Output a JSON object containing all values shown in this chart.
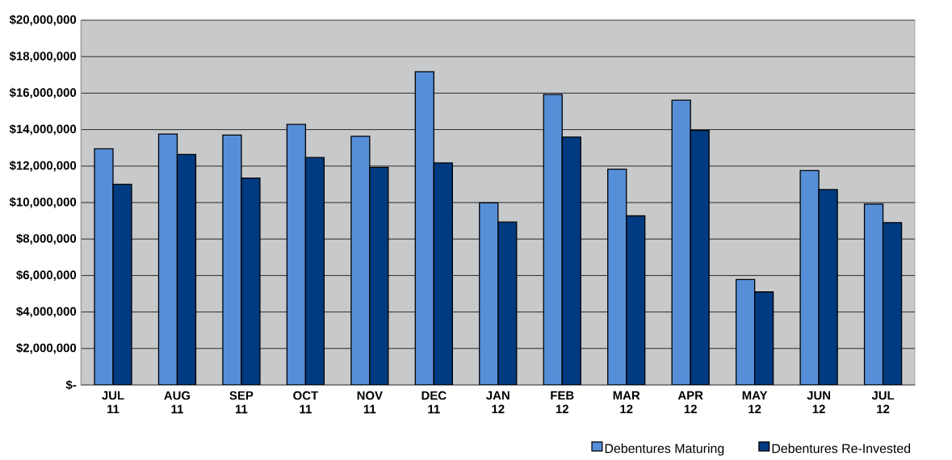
{
  "chart_data": {
    "type": "bar",
    "categories": [
      "JUL 11",
      "AUG 11",
      "SEP 11",
      "OCT 11",
      "NOV 11",
      "DEC 11",
      "JAN 12",
      "FEB 12",
      "MAR 12",
      "APR 12",
      "MAY 12",
      "JUN 12",
      "JUL 12"
    ],
    "series": [
      {
        "name": "Debentures Maturing",
        "color": "#568fd8",
        "values": [
          12950000,
          13760000,
          13700000,
          14290000,
          13630000,
          17170000,
          9980000,
          15920000,
          11830000,
          15610000,
          5780000,
          11750000,
          9920000
        ]
      },
      {
        "name": "Debentures Re-Invested",
        "color": "#003a80",
        "values": [
          11000000,
          12640000,
          11340000,
          12470000,
          11930000,
          12170000,
          8930000,
          13590000,
          9270000,
          13950000,
          5100000,
          10710000,
          8900000
        ]
      }
    ],
    "ylim": [
      0,
      20000000
    ],
    "yticks": [
      {
        "value": 0,
        "label": "$-"
      },
      {
        "value": 2000000,
        "label": "$2,000,000"
      },
      {
        "value": 4000000,
        "label": "$4,000,000"
      },
      {
        "value": 6000000,
        "label": "$6,000,000"
      },
      {
        "value": 8000000,
        "label": "$8,000,000"
      },
      {
        "value": 10000000,
        "label": "$10,000,000"
      },
      {
        "value": 12000000,
        "label": "$12,000,000"
      },
      {
        "value": 14000000,
        "label": "$14,000,000"
      },
      {
        "value": 16000000,
        "label": "$16,000,000"
      },
      {
        "value": 18000000,
        "label": "$18,000,000"
      },
      {
        "value": 20000000,
        "label": "$20,000,000"
      }
    ],
    "grid": "y",
    "legend": "bottom right"
  }
}
